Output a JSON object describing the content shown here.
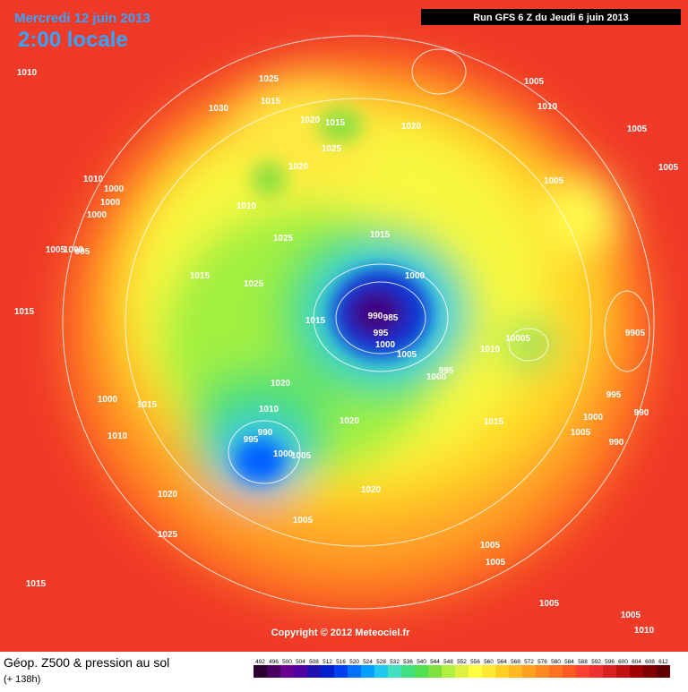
{
  "header": {
    "date": "Mercredi 12 juin 2013",
    "time": "2:00 locale",
    "run": "Run GFS 6 Z du Jeudi 6 juin 2013"
  },
  "map": {
    "copyright": "Copyright © 2012 Meteociel.fr",
    "pressure_labels": [
      "1010",
      "1025",
      "1015",
      "1030",
      "1020",
      "1015",
      "1025",
      "1020",
      "1005",
      "1010",
      "1005",
      "1005",
      "1020",
      "1010",
      "1000",
      "1000",
      "1000",
      "1010",
      "1005",
      "1025",
      "1015",
      "1005",
      "1000",
      "995",
      "1015",
      "1025",
      "1000",
      "1015",
      "1015",
      "990",
      "985",
      "995",
      "1000",
      "10005",
      "9905",
      "1010",
      "1005",
      "995",
      "1000",
      "1020",
      "1000",
      "1015",
      "1010",
      "990",
      "995",
      "1020",
      "995",
      "990",
      "1000",
      "1015",
      "1005",
      "990",
      "1010",
      "1000",
      "1005",
      "1020",
      "1020",
      "1005",
      "1025",
      "1005",
      "1005",
      "1015",
      "1005",
      "1005",
      "1010"
    ]
  },
  "footer": {
    "title": "Géop. Z500 & pression au sol",
    "lead": "(+ 138h)",
    "scale": [
      492,
      496,
      500,
      504,
      508,
      512,
      516,
      520,
      524,
      528,
      532,
      536,
      540,
      544,
      548,
      552,
      556,
      560,
      564,
      568,
      572,
      576,
      580,
      584,
      588,
      592,
      596,
      600,
      604,
      608,
      612
    ],
    "scale_colors": [
      "#2a0030",
      "#4a0060",
      "#6a0090",
      "#5000a0",
      "#2010b0",
      "#0020d0",
      "#0040f0",
      "#0070ff",
      "#00a0ff",
      "#20c8f0",
      "#40e0c0",
      "#40e080",
      "#50e050",
      "#80e040",
      "#b0f040",
      "#e0f040",
      "#ffff40",
      "#ffe830",
      "#ffd020",
      "#ffb820",
      "#ffa020",
      "#ff8820",
      "#ff7020",
      "#ff5820",
      "#ff4030",
      "#f03030",
      "#d82020",
      "#c01010",
      "#a00000",
      "#800000",
      "#600000"
    ]
  }
}
